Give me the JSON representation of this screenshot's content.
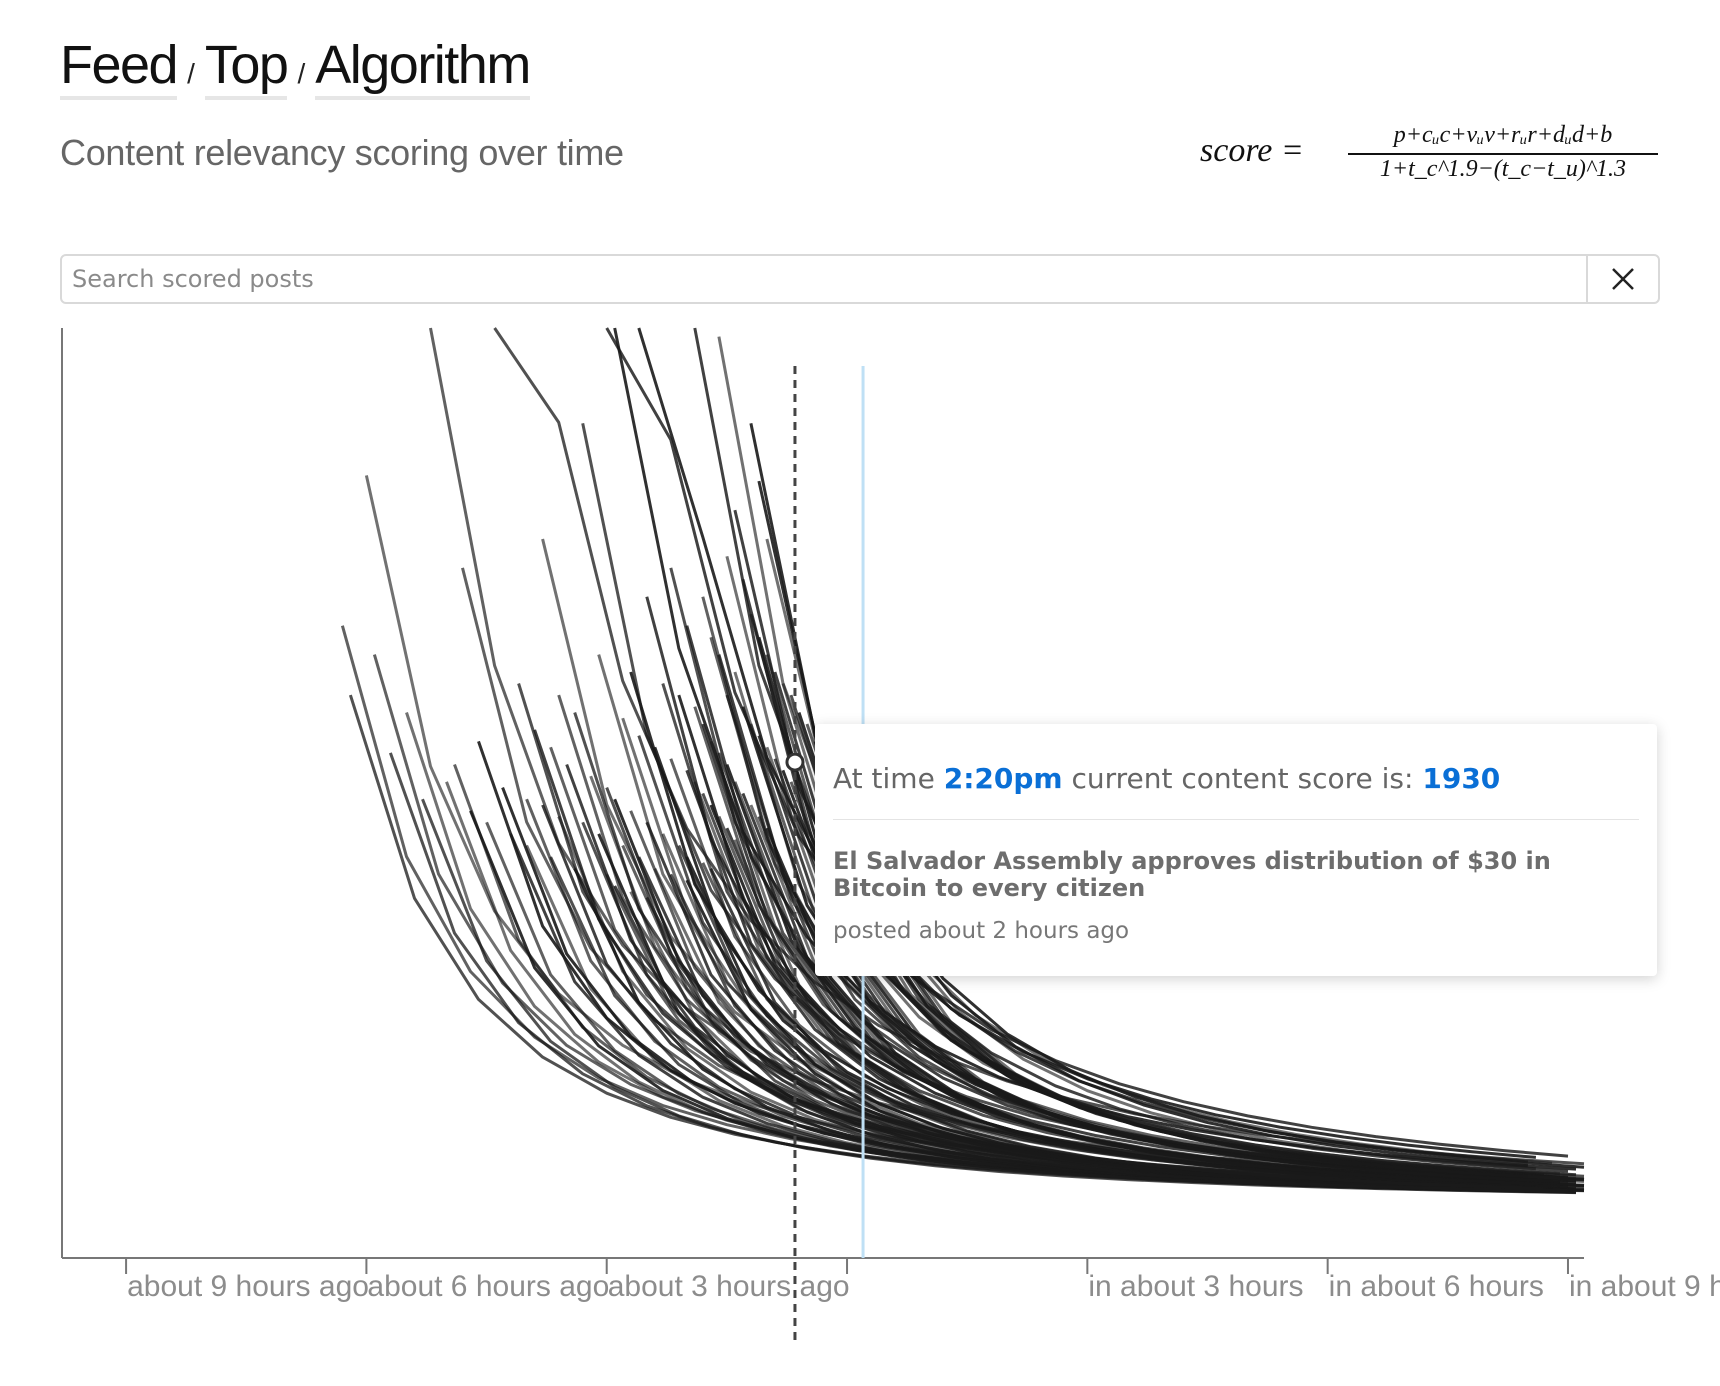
{
  "breadcrumb": {
    "items": [
      {
        "label": "Feed"
      },
      {
        "label": "Top"
      },
      {
        "label": "Algorithm"
      }
    ],
    "separator": "/"
  },
  "subtitle": "Content relevancy scoring over time",
  "formula": {
    "lhs": "score =",
    "numerator": "p+cᵤc+vᵤv+rᵤr+dᵤd+b",
    "denominator": "1+t_c^1.9−(t_c−t_u)^1.3"
  },
  "search": {
    "placeholder": "Search scored posts",
    "value": "",
    "clear_icon": "close-icon"
  },
  "tooltip": {
    "prefix": "At time",
    "time": "2:20pm",
    "middle": "current content score is:",
    "score": "1930",
    "post_title": "El Salvador Assembly approves distribution of $30 in Bitcoin to every citizen",
    "post_meta": "posted about 2 hours ago"
  },
  "colors": {
    "line": "#1a1a1a",
    "accent": "#0a6fd6",
    "now_line": "#bfe0f5",
    "axis": "#777777",
    "tick_label": "#8c8c8c"
  },
  "chart_data": {
    "type": "line",
    "title": "",
    "xlabel": "",
    "ylabel": "",
    "x_unit": "hours relative to now",
    "x_ticks": [
      {
        "x": -9,
        "label": "about 9 hours ago"
      },
      {
        "x": -6,
        "label": "about 6 hours ago"
      },
      {
        "x": -3,
        "label": "about 3 hours ago"
      },
      {
        "x": 0,
        "label": ""
      },
      {
        "x": 3,
        "label": "in about 3 hours"
      },
      {
        "x": 6,
        "label": "in about 6 hours"
      },
      {
        "x": 9,
        "label": "in about 9 hours"
      }
    ],
    "xlim": [
      -9.8,
      9.2
    ],
    "hover": {
      "x": -0.65,
      "y": 1930
    },
    "now_x": 0.2,
    "grid": false,
    "legend": "none",
    "decay": {
      "b": 1.9,
      "ref": 2.0,
      "end_x": 9.2
    },
    "series_count": 113,
    "series": [
      {
        "start": -6.0,
        "scale": 1.26
      },
      {
        "start": -5.2,
        "scale": 1.55
      },
      {
        "start": -4.4,
        "scale": 2.25
      },
      {
        "start": -3.0,
        "scale": 2.2
      },
      {
        "start": -2.6,
        "scale": 1.92
      },
      {
        "start": -3.8,
        "scale": 1.15
      },
      {
        "start": -4.8,
        "scale": 1.1
      },
      {
        "start": -3.3,
        "scale": 1.35
      },
      {
        "start": -1.9,
        "scale": 1.55
      },
      {
        "start": -2.9,
        "scale": 1.6
      },
      {
        "start": -1.6,
        "scale": 1.5
      },
      {
        "start": -5.9,
        "scale": 0.95
      },
      {
        "start": -4.1,
        "scale": 0.9
      },
      {
        "start": -2.5,
        "scale": 1.05
      },
      {
        "start": -1.2,
        "scale": 1.35
      },
      {
        "start": -5.5,
        "scale": 0.85
      },
      {
        "start": -3.6,
        "scale": 0.88
      },
      {
        "start": -2.2,
        "scale": 1.1
      },
      {
        "start": -1.4,
        "scale": 1.2
      },
      {
        "start": -4.6,
        "scale": 0.8
      },
      {
        "start": -3.1,
        "scale": 0.95
      },
      {
        "start": -1.8,
        "scale": 1.05
      },
      {
        "start": -5.7,
        "scale": 0.78
      },
      {
        "start": -3.9,
        "scale": 0.82
      },
      {
        "start": -2.7,
        "scale": 0.92
      },
      {
        "start": -1.5,
        "scale": 1.12
      },
      {
        "start": -4.9,
        "scale": 0.76
      },
      {
        "start": -3.4,
        "scale": 0.85
      },
      {
        "start": -2.0,
        "scale": 1.0
      },
      {
        "start": -1.1,
        "scale": 1.25
      },
      {
        "start": -5.0,
        "scale": 0.73
      },
      {
        "start": -3.7,
        "scale": 0.79
      },
      {
        "start": -2.3,
        "scale": 0.9
      },
      {
        "start": -1.3,
        "scale": 1.08
      },
      {
        "start": -4.3,
        "scale": 0.72
      },
      {
        "start": -2.8,
        "scale": 0.84
      },
      {
        "start": -1.7,
        "scale": 0.98
      },
      {
        "start": -5.3,
        "scale": 0.7
      },
      {
        "start": -3.5,
        "scale": 0.76
      },
      {
        "start": -2.1,
        "scale": 0.88
      },
      {
        "start": -1.0,
        "scale": 1.15
      },
      {
        "start": -4.0,
        "scale": 0.7
      },
      {
        "start": -2.6,
        "scale": 0.81
      },
      {
        "start": -1.6,
        "scale": 0.95
      },
      {
        "start": -4.7,
        "scale": 0.68
      },
      {
        "start": -3.2,
        "scale": 0.74
      },
      {
        "start": -1.9,
        "scale": 0.86
      },
      {
        "start": -1.2,
        "scale": 1.02
      },
      {
        "start": -3.8,
        "scale": 0.69
      },
      {
        "start": -2.4,
        "scale": 0.79
      },
      {
        "start": -1.4,
        "scale": 0.92
      },
      {
        "start": -4.5,
        "scale": 0.66
      },
      {
        "start": -3.0,
        "scale": 0.72
      },
      {
        "start": -1.8,
        "scale": 0.83
      },
      {
        "start": -1.1,
        "scale": 0.98
      },
      {
        "start": -3.6,
        "scale": 0.67
      },
      {
        "start": -2.2,
        "scale": 0.77
      },
      {
        "start": -1.5,
        "scale": 0.88
      },
      {
        "start": -4.2,
        "scale": 0.64
      },
      {
        "start": -2.9,
        "scale": 0.7
      },
      {
        "start": -1.7,
        "scale": 0.8
      },
      {
        "start": -1.0,
        "scale": 0.95
      },
      {
        "start": -3.3,
        "scale": 0.66
      },
      {
        "start": -2.0,
        "scale": 0.75
      },
      {
        "start": -1.3,
        "scale": 0.86
      },
      {
        "start": -4.0,
        "scale": 0.62
      },
      {
        "start": -2.7,
        "scale": 0.68
      },
      {
        "start": -1.6,
        "scale": 0.78
      },
      {
        "start": -0.9,
        "scale": 0.92
      },
      {
        "start": -3.1,
        "scale": 0.64
      },
      {
        "start": -1.9,
        "scale": 0.73
      },
      {
        "start": -1.2,
        "scale": 0.83
      },
      {
        "start": -3.7,
        "scale": 0.6
      },
      {
        "start": -2.5,
        "scale": 0.66
      },
      {
        "start": -1.5,
        "scale": 0.76
      },
      {
        "start": -0.8,
        "scale": 0.9
      },
      {
        "start": -2.8,
        "scale": 0.62
      },
      {
        "start": -1.8,
        "scale": 0.71
      },
      {
        "start": -1.1,
        "scale": 0.81
      },
      {
        "start": -3.4,
        "scale": 0.58
      },
      {
        "start": -2.3,
        "scale": 0.64
      },
      {
        "start": -1.4,
        "scale": 0.73
      },
      {
        "start": -0.7,
        "scale": 0.88
      },
      {
        "start": -2.6,
        "scale": 0.6
      },
      {
        "start": -1.7,
        "scale": 0.69
      },
      {
        "start": -1.0,
        "scale": 0.79
      },
      {
        "start": -3.0,
        "scale": 0.57
      },
      {
        "start": -2.1,
        "scale": 0.62
      },
      {
        "start": -1.3,
        "scale": 0.71
      },
      {
        "start": -0.6,
        "scale": 0.85
      },
      {
        "start": -2.4,
        "scale": 0.58
      },
      {
        "start": -1.6,
        "scale": 0.67
      },
      {
        "start": -0.9,
        "scale": 0.77
      },
      {
        "start": -2.9,
        "scale": 0.55
      },
      {
        "start": -2.0,
        "scale": 0.6
      },
      {
        "start": -1.2,
        "scale": 0.69
      },
      {
        "start": -0.5,
        "scale": 0.83
      },
      {
        "start": -2.2,
        "scale": 0.57
      },
      {
        "start": -1.5,
        "scale": 0.65
      },
      {
        "start": -0.8,
        "scale": 0.75
      },
      {
        "start": -2.7,
        "scale": 0.54
      },
      {
        "start": -1.8,
        "scale": 0.59
      },
      {
        "start": -1.1,
        "scale": 0.67
      },
      {
        "start": -0.4,
        "scale": 0.8
      },
      {
        "start": -2.0,
        "scale": 0.56
      },
      {
        "start": -1.4,
        "scale": 0.63
      },
      {
        "start": -0.7,
        "scale": 0.73
      },
      {
        "start": -2.5,
        "scale": 0.53
      },
      {
        "start": -1.7,
        "scale": 0.58
      },
      {
        "start": -1.0,
        "scale": 0.65
      },
      {
        "start": -0.3,
        "scale": 0.78
      },
      {
        "start": -6.3,
        "scale": 1.0
      },
      {
        "start": -6.2,
        "scale": 0.88
      }
    ]
  }
}
